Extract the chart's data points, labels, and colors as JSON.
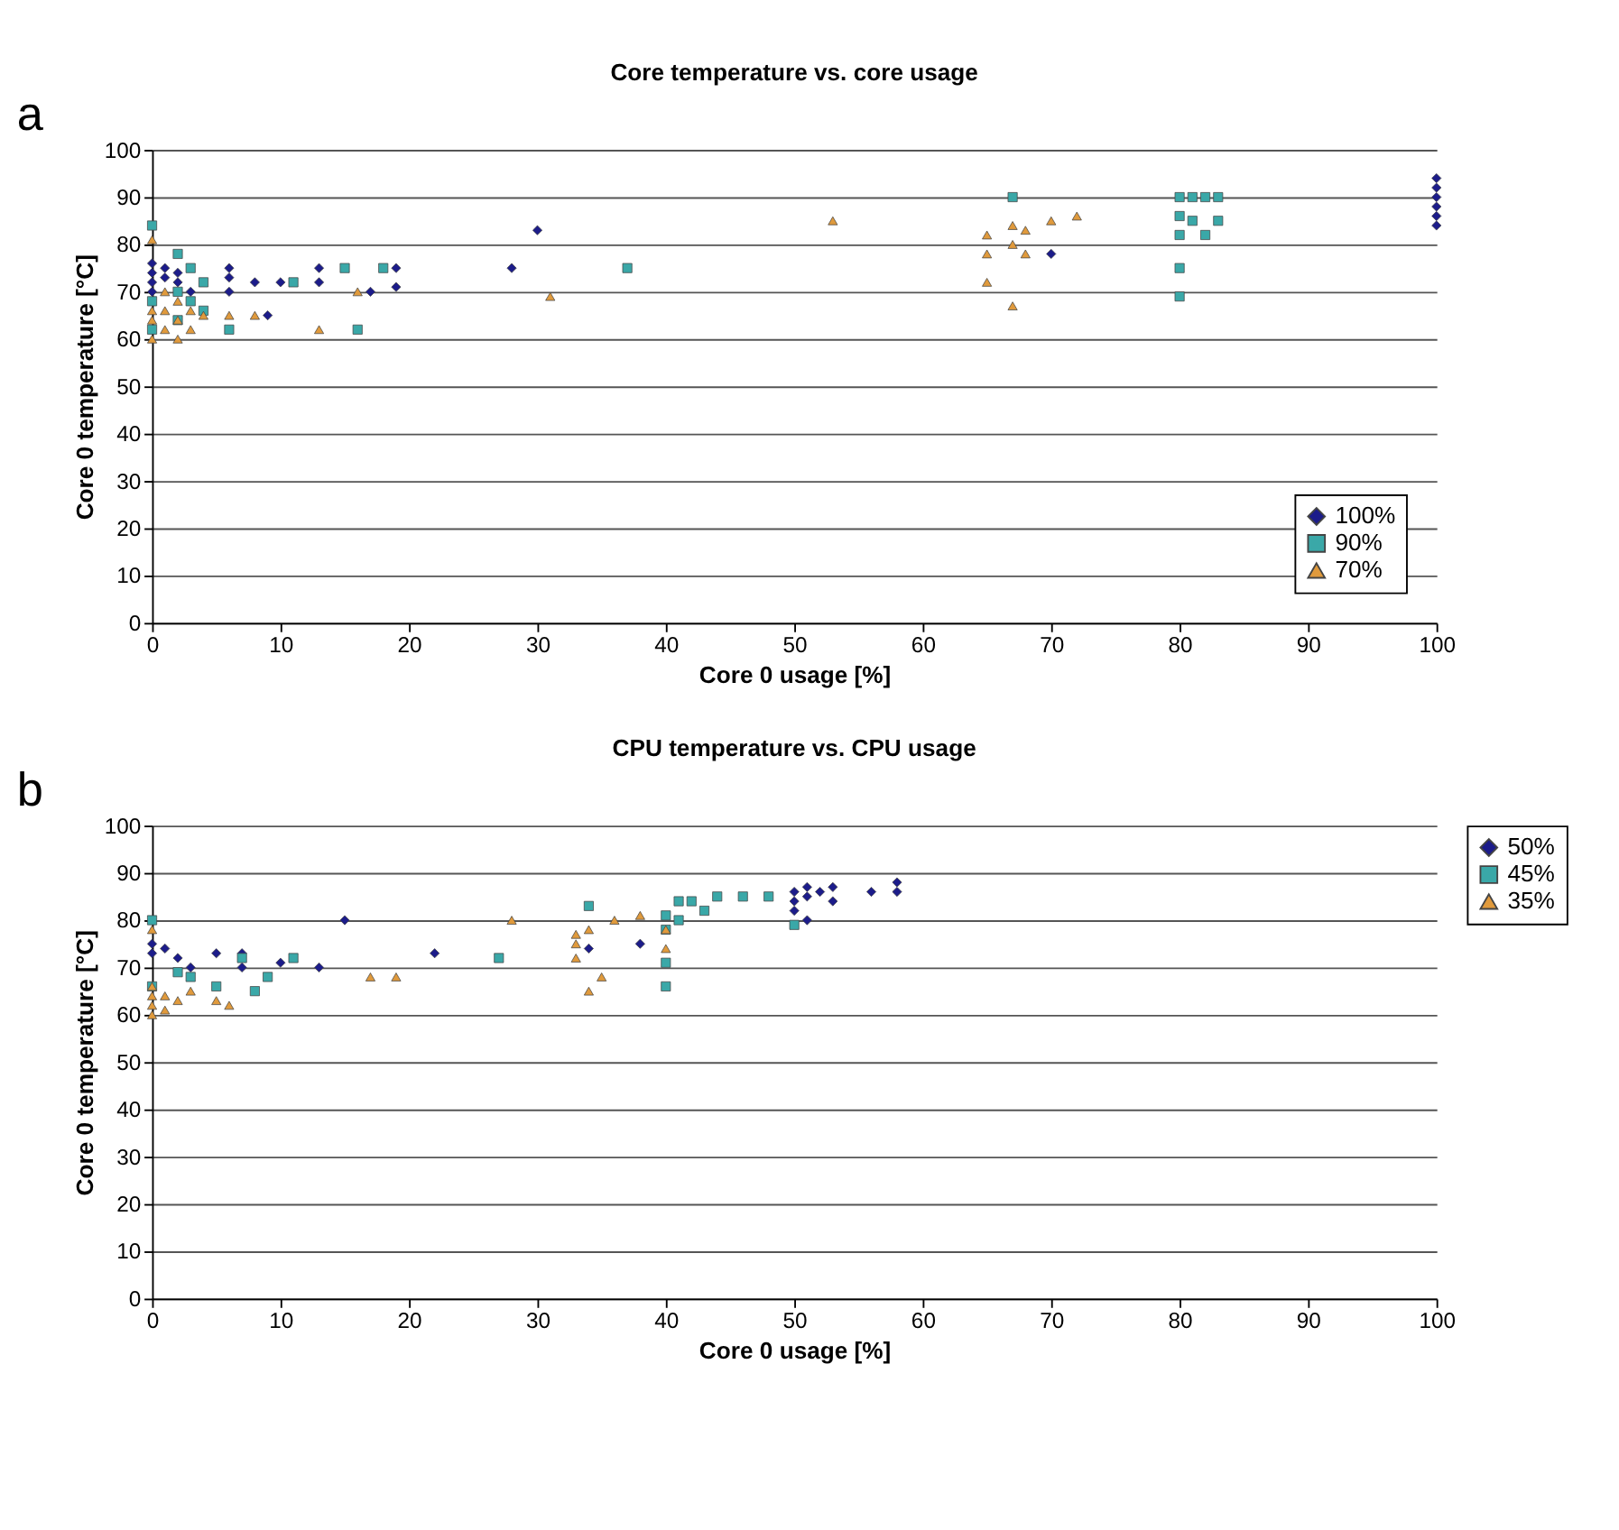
{
  "chart_data": [
    {
      "type": "scatter",
      "title": "Core temperature vs. core usage",
      "xlabel": "Core 0 usage [%]",
      "ylabel": "Core 0 temperature [°C]",
      "annotations": [
        "a"
      ],
      "xlim": [
        0,
        100
      ],
      "ylim": [
        0,
        100
      ],
      "xticks": [
        0,
        10,
        20,
        30,
        40,
        50,
        60,
        70,
        80,
        90,
        100
      ],
      "yticks": [
        0,
        10,
        20,
        30,
        40,
        50,
        60,
        70,
        80,
        90,
        100
      ],
      "grid": "y",
      "legend": "bottom right",
      "series": [
        {
          "name": "100%",
          "color": "#1c1c8a",
          "marker": "diamond",
          "x": [
            0,
            0,
            0,
            0,
            1,
            1,
            2,
            2,
            3,
            6,
            6,
            6,
            8,
            9,
            10,
            13,
            13,
            17,
            19,
            19,
            28,
            30,
            70,
            100,
            100,
            100,
            100,
            100,
            100
          ],
          "values": [
            72,
            74,
            76,
            70,
            75,
            73,
            74,
            72,
            70,
            75,
            73,
            70,
            72,
            65,
            72,
            75,
            72,
            70,
            75,
            71,
            75,
            83,
            78,
            84,
            86,
            88,
            90,
            92,
            94
          ]
        },
        {
          "name": "90%",
          "color": "#3aa8a8",
          "marker": "square",
          "x": [
            0,
            0,
            0,
            2,
            2,
            2,
            3,
            3,
            4,
            4,
            6,
            11,
            15,
            16,
            18,
            37,
            67,
            80,
            80,
            80,
            80,
            80,
            81,
            81,
            82,
            82,
            83,
            83
          ],
          "values": [
            84,
            68,
            62,
            78,
            70,
            64,
            75,
            68,
            72,
            66,
            62,
            72,
            75,
            62,
            75,
            75,
            90,
            90,
            86,
            82,
            75,
            69,
            90,
            85,
            90,
            82,
            90,
            85
          ]
        },
        {
          "name": "70%",
          "color": "#e09a3c",
          "marker": "triangle",
          "x": [
            0,
            0,
            0,
            0,
            1,
            1,
            1,
            2,
            2,
            2,
            3,
            3,
            4,
            6,
            8,
            13,
            16,
            31,
            53,
            65,
            65,
            65,
            67,
            67,
            67,
            68,
            68,
            70,
            72
          ],
          "values": [
            81,
            60,
            64,
            66,
            62,
            66,
            70,
            60,
            64,
            68,
            62,
            66,
            65,
            65,
            65,
            62,
            70,
            69,
            85,
            72,
            78,
            82,
            67,
            80,
            84,
            78,
            83,
            85,
            86
          ]
        }
      ]
    },
    {
      "type": "scatter",
      "title": "CPU temperature vs. CPU usage",
      "xlabel": "Core 0 usage [%]",
      "ylabel": "Core 0 temperature [°C]",
      "annotations": [
        "b"
      ],
      "xlim": [
        0,
        100
      ],
      "ylim": [
        0,
        100
      ],
      "xticks": [
        0,
        10,
        20,
        30,
        40,
        50,
        60,
        70,
        80,
        90,
        100
      ],
      "yticks": [
        0,
        10,
        20,
        30,
        40,
        50,
        60,
        70,
        80,
        90,
        100
      ],
      "grid": "y",
      "legend": "right",
      "series": [
        {
          "name": "50%",
          "color": "#1c1c8a",
          "marker": "diamond",
          "x": [
            0,
            0,
            1,
            2,
            3,
            5,
            7,
            7,
            10,
            13,
            15,
            22,
            34,
            38,
            50,
            50,
            50,
            51,
            51,
            51,
            52,
            53,
            53,
            56,
            58,
            58
          ],
          "values": [
            75,
            73,
            74,
            72,
            70,
            73,
            73,
            70,
            71,
            70,
            80,
            73,
            74,
            75,
            82,
            84,
            86,
            80,
            85,
            87,
            86,
            84,
            87,
            86,
            86,
            88
          ]
        },
        {
          "name": "45%",
          "color": "#3aa8a8",
          "marker": "square",
          "x": [
            0,
            0,
            2,
            3,
            5,
            7,
            8,
            9,
            11,
            27,
            34,
            40,
            40,
            40,
            40,
            41,
            41,
            42,
            43,
            44,
            46,
            48,
            50
          ],
          "values": [
            80,
            66,
            69,
            68,
            66,
            72,
            65,
            68,
            72,
            72,
            83,
            66,
            71,
            78,
            81,
            84,
            80,
            84,
            82,
            85,
            85,
            85,
            79
          ]
        },
        {
          "name": "35%",
          "color": "#e09a3c",
          "marker": "triangle",
          "x": [
            0,
            0,
            0,
            0,
            0,
            1,
            1,
            2,
            3,
            5,
            6,
            17,
            19,
            28,
            33,
            33,
            33,
            34,
            34,
            35,
            36,
            38,
            40,
            40
          ],
          "values": [
            78,
            60,
            62,
            64,
            66,
            61,
            64,
            63,
            65,
            63,
            62,
            68,
            68,
            80,
            72,
            75,
            77,
            65,
            78,
            68,
            80,
            81,
            78,
            74
          ]
        }
      ]
    }
  ]
}
